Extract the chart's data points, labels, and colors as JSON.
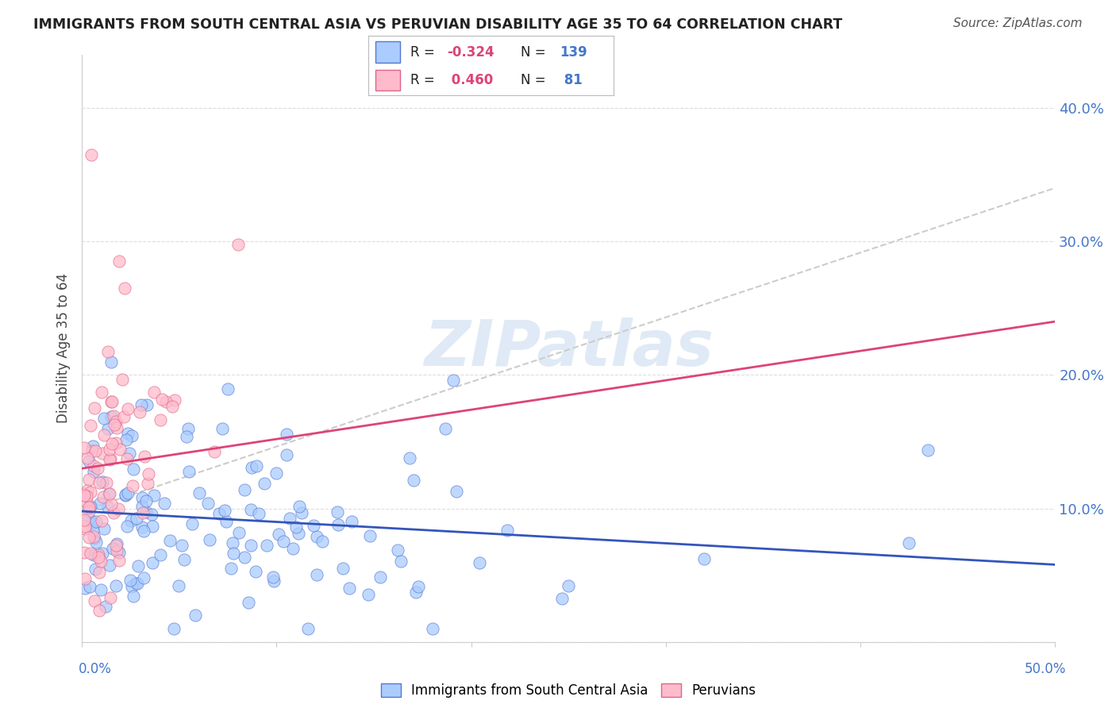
{
  "title": "IMMIGRANTS FROM SOUTH CENTRAL ASIA VS PERUVIAN DISABILITY AGE 35 TO 64 CORRELATION CHART",
  "source": "Source: ZipAtlas.com",
  "ylabel": "Disability Age 35 to 64",
  "ytick_vals": [
    0.0,
    0.1,
    0.2,
    0.3,
    0.4
  ],
  "ytick_labels": [
    "",
    "10.0%",
    "20.0%",
    "30.0%",
    "40.0%"
  ],
  "xlim": [
    0.0,
    0.5
  ],
  "ylim": [
    0.0,
    0.44
  ],
  "legend_blue_R": "-0.324",
  "legend_blue_N": "139",
  "legend_pink_R": "0.460",
  "legend_pink_N": "81",
  "blue_color": "#aaccff",
  "pink_color": "#ffbbcc",
  "blue_edge_color": "#5577cc",
  "pink_edge_color": "#dd6688",
  "blue_line_color": "#3355bb",
  "pink_line_color": "#dd4477",
  "trend_line_color": "#cccccc",
  "watermark_color": "#ccddf0",
  "title_color": "#222222",
  "source_color": "#555555",
  "tick_color": "#4477cc",
  "ylabel_color": "#444444",
  "grid_color": "#dddddd",
  "blue_trend_x": [
    0.0,
    0.5
  ],
  "blue_trend_y": [
    0.098,
    0.058
  ],
  "pink_trend_x": [
    0.0,
    0.5
  ],
  "pink_trend_y": [
    0.13,
    0.24
  ],
  "grey_trend_x": [
    0.0,
    0.5
  ],
  "grey_trend_y": [
    0.098,
    0.34
  ]
}
